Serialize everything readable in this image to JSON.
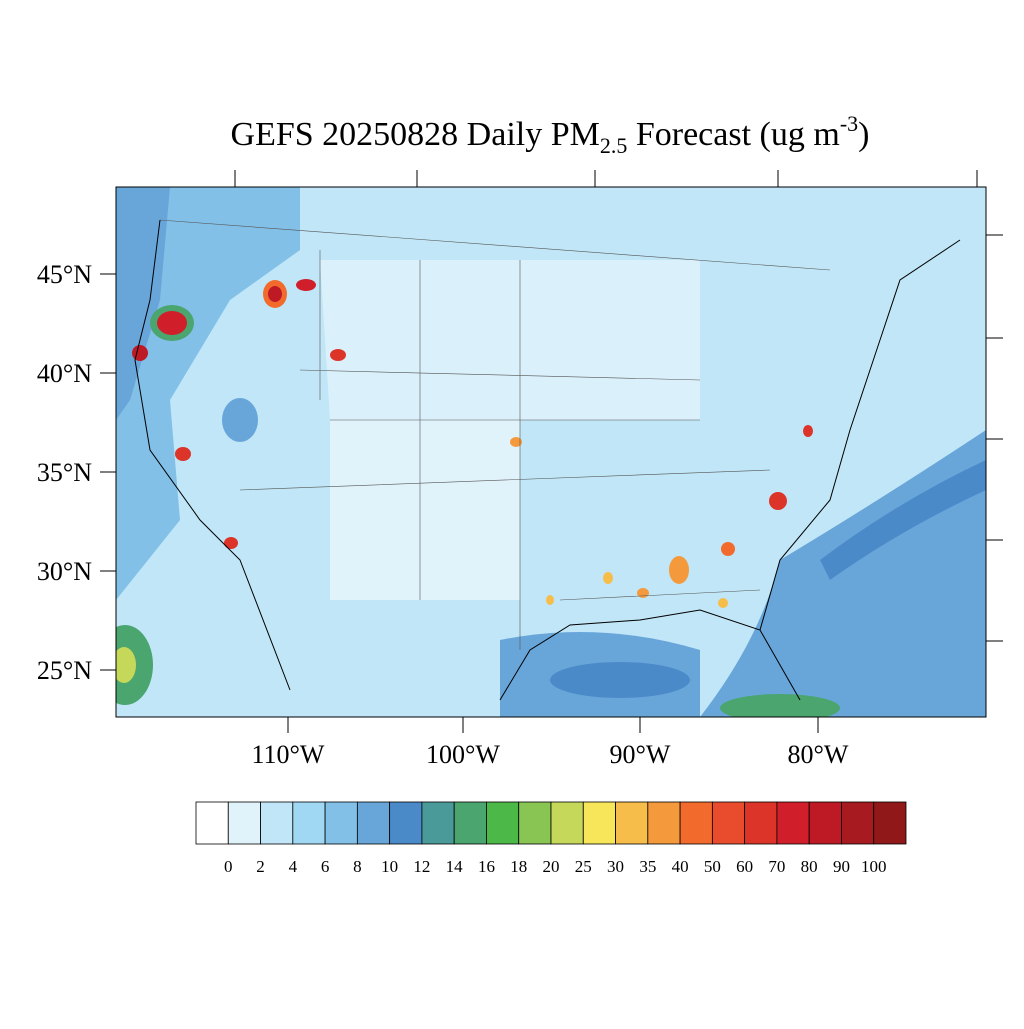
{
  "title": {
    "main": "GEFS 20250828 Daily PM",
    "subscript": "2.5",
    "middle": " Forecast (ug m",
    "superscript": "-3",
    "end": ")"
  },
  "lat_labels": [
    "45°N",
    "40°N",
    "35°N",
    "30°N",
    "25°N"
  ],
  "lon_labels": [
    "110°W",
    "100°W",
    "90°W",
    "80°W"
  ],
  "colorbar": {
    "colors": [
      "#ffffff",
      "#e0f3fb",
      "#c0e6f7",
      "#a0d8f4",
      "#82c0e8",
      "#68a6da",
      "#4b8ac8",
      "#4a9a9a",
      "#4aa56e",
      "#4cb848",
      "#88c552",
      "#c5d85a",
      "#f8e65a",
      "#f7bd4a",
      "#f59a3c",
      "#f26b2c",
      "#e84c2c",
      "#dc3429",
      "#d01f2a",
      "#bd1a26",
      "#a61a20",
      "#901818"
    ],
    "labels": [
      0,
      2,
      4,
      6,
      8,
      10,
      12,
      14,
      16,
      18,
      20,
      25,
      30,
      35,
      40,
      50,
      60,
      70,
      80,
      90,
      100
    ]
  }
}
